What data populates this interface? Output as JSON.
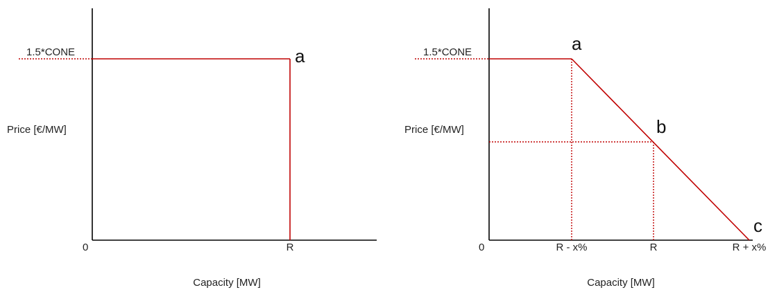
{
  "colors": {
    "curve": "#c00000",
    "axis": "#000000"
  },
  "left_panel": {
    "cap_label": "1.5*CONE",
    "ylabel": "Price [€/MW]",
    "xlabel": "Capacity  [MW]",
    "origin": "0",
    "x_tick_r": "R",
    "point_a": "a"
  },
  "right_panel": {
    "cap_label": "1.5*CONE",
    "ylabel": "Price [€/MW]",
    "xlabel": "Capacity  [MW]",
    "origin": "0",
    "x_ticks": [
      "R - x%",
      "R",
      "R + x%"
    ],
    "point_a": "a",
    "point_b": "b",
    "point_c": "c"
  }
}
